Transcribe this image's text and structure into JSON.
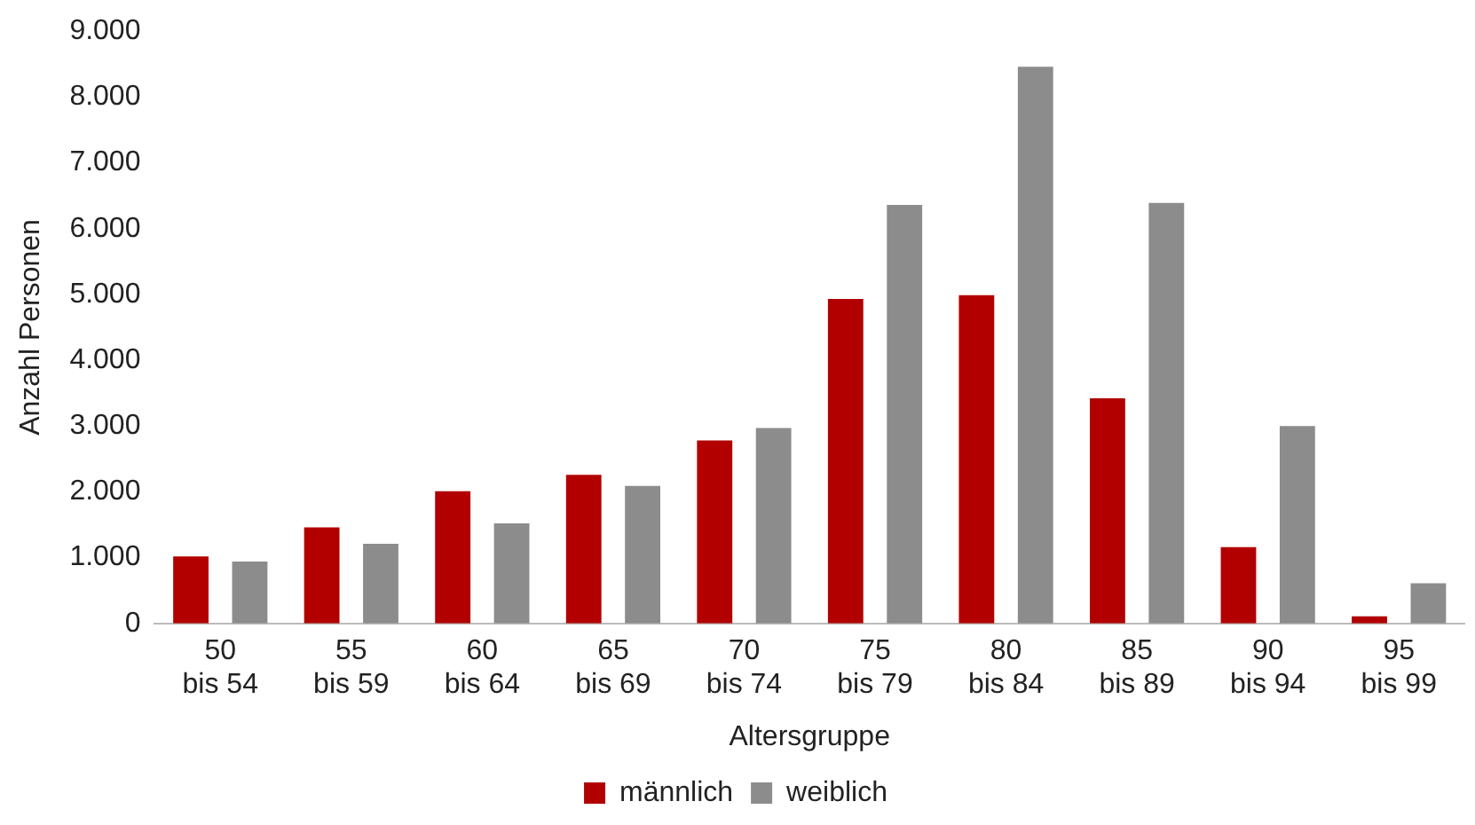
{
  "chart_data": {
    "type": "bar",
    "xlabel": "Altersgruppe",
    "ylabel": "Anzahl Personen",
    "categories": [
      "50\nbis 54",
      "55\nbis 59",
      "60\nbis 64",
      "65\nbis 69",
      "70\nbis 74",
      "75\nbis 79",
      "80\nbis 84",
      "85\nbis 89",
      "90\nbis 94",
      "95\nbis 99"
    ],
    "series": [
      {
        "name": "männlich",
        "color": "#b20000",
        "values": [
          1020,
          1460,
          2010,
          2260,
          2780,
          4930,
          4990,
          3420,
          1160,
          110
        ]
      },
      {
        "name": "weiblich",
        "color": "#8c8c8c",
        "values": [
          940,
          1210,
          1520,
          2090,
          2970,
          6360,
          8460,
          6390,
          3000,
          610
        ]
      }
    ],
    "ylim": [
      0,
      9000
    ],
    "yticks": [
      {
        "value": 0,
        "label": "0"
      },
      {
        "value": 1000,
        "label": "1.000"
      },
      {
        "value": 2000,
        "label": "2.000"
      },
      {
        "value": 3000,
        "label": "3.000"
      },
      {
        "value": 4000,
        "label": "4.000"
      },
      {
        "value": 5000,
        "label": "5.000"
      },
      {
        "value": 6000,
        "label": "6.000"
      },
      {
        "value": 7000,
        "label": "7.000"
      },
      {
        "value": 8000,
        "label": "8.000"
      },
      {
        "value": 9000,
        "label": "9.000"
      }
    ],
    "grid": false,
    "legend": "bottom"
  }
}
